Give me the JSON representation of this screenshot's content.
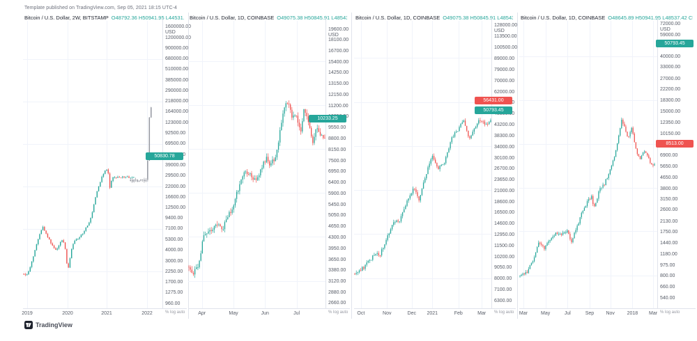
{
  "page": {
    "note": "Template published on TradingView.com, Sep 05, 2021 18:15 UTC-4",
    "logo_text": "TradingView",
    "axis_unit": "USD",
    "axis_footer": "% log auto"
  },
  "colors": {
    "up": "#26a69a",
    "down": "#ef5350",
    "ghost": "#9598a1",
    "grid": "#f0f3fa",
    "divider": "#e0e3eb",
    "axis_text": "#565b66",
    "title_text": "#1e222d",
    "ohlc_text": "#26a69a",
    "badge_up": "#26a69a",
    "badge_down": "#ef5350"
  },
  "chart_data": [
    {
      "type": "candlestick",
      "title": "Bitcoin / U.S. Dollar, 2W, BITSTAMP",
      "ohlc_line": "O48792.36  H50941.95  L44531.42  C50830.78 …",
      "scale": "log",
      "grid": true,
      "price_range": [
        853,
        1900000
      ],
      "axis_ticks": [
        "1600000.00",
        "1200000.00",
        "900000.00",
        "680000.00",
        "510000.00",
        "385000.00",
        "290000.00",
        "218000.00",
        "164000.00",
        "123000.00",
        "92500.00",
        "69500.00",
        "52000.00",
        "39000.00",
        "29500.00",
        "22000.00",
        "16600.00",
        "12500.00",
        "9400.00",
        "7100.00",
        "5300.00",
        "4000.00",
        "3000.00",
        "2250.00",
        "1700.00",
        "1275.00",
        "960.00"
      ],
      "time_labels": [
        {
          "label": "2019",
          "pos": 0.03
        },
        {
          "label": "2020",
          "pos": 0.32
        },
        {
          "label": "2021",
          "pos": 0.6
        },
        {
          "label": "2022",
          "pos": 0.89
        }
      ],
      "series": {
        "count": 70,
        "volatility": 0.05,
        "x_span": [
          0.0,
          0.8
        ],
        "path": [
          [
            0.0,
            3750
          ],
          [
            0.03,
            3650
          ],
          [
            0.07,
            5000
          ],
          [
            0.12,
            8500
          ],
          [
            0.17,
            13500
          ],
          [
            0.21,
            10500
          ],
          [
            0.25,
            8400
          ],
          [
            0.28,
            7200
          ],
          [
            0.31,
            7400
          ],
          [
            0.34,
            9500
          ],
          [
            0.37,
            8800
          ],
          [
            0.4,
            4000
          ],
          [
            0.43,
            7000
          ],
          [
            0.46,
            9200
          ],
          [
            0.5,
            9500
          ],
          [
            0.54,
            11500
          ],
          [
            0.58,
            13500
          ],
          [
            0.62,
            19000
          ],
          [
            0.65,
            29000
          ],
          [
            0.68,
            38000
          ],
          [
            0.71,
            52000
          ],
          [
            0.74,
            59000
          ],
          [
            0.755,
            63500
          ],
          [
            0.77,
            55000
          ],
          [
            0.78,
            40000
          ],
          [
            0.79,
            31500
          ],
          [
            0.795,
            42000
          ],
          [
            0.8,
            50500
          ]
        ]
      },
      "ghost_series": {
        "count": 13,
        "volatility": 0.08,
        "x_span": [
          0.765,
          0.925
        ],
        "path": [
          [
            0.765,
            46000
          ],
          [
            0.79,
            58000
          ],
          [
            0.81,
            54000
          ],
          [
            0.84,
            88000
          ],
          [
            0.86,
            80000
          ],
          [
            0.885,
            125000
          ],
          [
            0.905,
            160000
          ],
          [
            0.925,
            320000
          ]
        ]
      },
      "badges": [
        {
          "text": "50830.78",
          "price": 50830.78,
          "direction": "up"
        }
      ]
    },
    {
      "type": "candlestick",
      "title": "Bitcoin / U.S. Dollar, 1D, COINBASE",
      "ohlc_line": "O49075.38  H50845.91  L48543.42  C50793.45 …",
      "scale": "log",
      "grid": true,
      "price_range": [
        2570,
        20900
      ],
      "axis_ticks": [
        "19600.00",
        "18100.00",
        "16700.00",
        "15400.00",
        "14250.00",
        "13150.00",
        "12150.00",
        "11200.00",
        "10350.00",
        "9550.00",
        "8800.00",
        "8150.00",
        "7500.00",
        "6950.00",
        "6400.00",
        "5900.00",
        "5450.00",
        "5050.00",
        "4650.00",
        "4300.00",
        "3950.00",
        "3650.00",
        "3380.00",
        "3120.00",
        "2880.00",
        "2660.00"
      ],
      "time_labels": [
        {
          "label": "Apr",
          "pos": 0.1
        },
        {
          "label": "May",
          "pos": 0.33
        },
        {
          "label": "Jun",
          "pos": 0.56
        },
        {
          "label": "Jul",
          "pos": 0.79
        }
      ],
      "series": {
        "count": 92,
        "volatility": 0.04,
        "x_span": [
          0.0,
          1.0
        ],
        "path": [
          [
            0.0,
            4050
          ],
          [
            0.03,
            3900
          ],
          [
            0.07,
            4000
          ],
          [
            0.11,
            5150
          ],
          [
            0.16,
            5300
          ],
          [
            0.21,
            5500
          ],
          [
            0.25,
            5350
          ],
          [
            0.28,
            5700
          ],
          [
            0.33,
            6400
          ],
          [
            0.37,
            7300
          ],
          [
            0.41,
            8000
          ],
          [
            0.45,
            7950
          ],
          [
            0.49,
            7600
          ],
          [
            0.53,
            8200
          ],
          [
            0.57,
            9000
          ],
          [
            0.6,
            8500
          ],
          [
            0.64,
            9100
          ],
          [
            0.67,
            10800
          ],
          [
            0.7,
            12800
          ],
          [
            0.73,
            13600
          ],
          [
            0.76,
            11800
          ],
          [
            0.79,
            12500
          ],
          [
            0.82,
            10700
          ],
          [
            0.85,
            12900
          ],
          [
            0.88,
            11500
          ],
          [
            0.91,
            10100
          ],
          [
            0.94,
            11200
          ],
          [
            0.97,
            10600
          ],
          [
            1.0,
            10250
          ]
        ]
      },
      "badges": [
        {
          "text": "10233.25",
          "price": 10233.25,
          "direction": "up"
        }
      ]
    },
    {
      "type": "candlestick",
      "title": "Bitcoin / U.S. Dollar, 1D, COINBASE",
      "ohlc_line": "O49075.38  H50845.91  L48543.42  C50793.45 …",
      "scale": "log",
      "grid": true,
      "price_range": [
        5830,
        135500
      ],
      "axis_ticks": [
        "128000.00",
        "113500.00",
        "100500.00",
        "89000.00",
        "79000.00",
        "70000.00",
        "62000.00",
        "55000.00",
        "48800.00",
        "43200.00",
        "38300.00",
        "34000.00",
        "30100.00",
        "26700.00",
        "23650.00",
        "21000.00",
        "18600.00",
        "16500.00",
        "14600.00",
        "12950.00",
        "11500.00",
        "10200.00",
        "9050.00",
        "8000.00",
        "7100.00",
        "6300.00"
      ],
      "time_labels": [
        {
          "label": "Oct",
          "pos": 0.05
        },
        {
          "label": "Nov",
          "pos": 0.24
        },
        {
          "label": "Dec",
          "pos": 0.42
        },
        {
          "label": "2021",
          "pos": 0.57
        },
        {
          "label": "Feb",
          "pos": 0.76
        },
        {
          "label": "Mar",
          "pos": 0.93
        }
      ],
      "series": {
        "count": 92,
        "volatility": 0.04,
        "x_span": [
          0.0,
          1.0
        ],
        "path": [
          [
            0.0,
            10700
          ],
          [
            0.05,
            11200
          ],
          [
            0.1,
            12100
          ],
          [
            0.15,
            13300
          ],
          [
            0.18,
            13000
          ],
          [
            0.24,
            16000
          ],
          [
            0.28,
            18400
          ],
          [
            0.33,
            19300
          ],
          [
            0.38,
            23200
          ],
          [
            0.44,
            27500
          ],
          [
            0.47,
            24000
          ],
          [
            0.52,
            31000
          ],
          [
            0.57,
            39500
          ],
          [
            0.61,
            33500
          ],
          [
            0.66,
            36500
          ],
          [
            0.71,
            46500
          ],
          [
            0.76,
            52000
          ],
          [
            0.8,
            57000
          ],
          [
            0.84,
            47500
          ],
          [
            0.88,
            51500
          ],
          [
            0.92,
            57500
          ],
          [
            0.96,
            55000
          ],
          [
            1.0,
            56500
          ]
        ]
      },
      "badges": [
        {
          "text": "56431.00",
          "price": 56431.0,
          "direction": "down"
        },
        {
          "text": "50793.45",
          "price": 50793.45,
          "direction": "up"
        }
      ]
    },
    {
      "type": "candlestick",
      "title": "Bitcoin / U.S. Dollar, 1D, COINBASE",
      "ohlc_line": "O48645.89  H50941.95  L48537.42  C50793.45 …",
      "scale": "log",
      "grid": true,
      "price_range": [
        455,
        76200
      ],
      "axis_ticks": [
        "72000.00",
        "59000.00",
        "48500.00",
        "40000.00",
        "33000.00",
        "27000.00",
        "22200.00",
        "18300.00",
        "15000.00",
        "12350.00",
        "10150.00",
        "8350.00",
        "6900.00",
        "5650.00",
        "4650.00",
        "3800.00",
        "3150.00",
        "2600.00",
        "2130.00",
        "1750.00",
        "1440.00",
        "1180.00",
        "975.00",
        "800.00",
        "660.00",
        "540.00"
      ],
      "time_labels": [
        {
          "label": "Mar",
          "pos": 0.03
        },
        {
          "label": "May",
          "pos": 0.19
        },
        {
          "label": "Jul",
          "pos": 0.35
        },
        {
          "label": "Sep",
          "pos": 0.51
        },
        {
          "label": "Nov",
          "pos": 0.66
        },
        {
          "label": "2018",
          "pos": 0.82
        },
        {
          "label": "Mar",
          "pos": 0.97
        }
      ],
      "series": {
        "count": 95,
        "volatility": 0.055,
        "x_span": [
          0.0,
          0.985
        ],
        "path": [
          [
            0.0,
            1180
          ],
          [
            0.05,
            1250
          ],
          [
            0.1,
            1600
          ],
          [
            0.14,
            2150
          ],
          [
            0.18,
            1900
          ],
          [
            0.23,
            2300
          ],
          [
            0.27,
            2550
          ],
          [
            0.31,
            2450
          ],
          [
            0.35,
            2650
          ],
          [
            0.38,
            2100
          ],
          [
            0.42,
            2750
          ],
          [
            0.46,
            3600
          ],
          [
            0.5,
            4400
          ],
          [
            0.53,
            4850
          ],
          [
            0.55,
            3900
          ],
          [
            0.59,
            5400
          ],
          [
            0.63,
            6100
          ],
          [
            0.66,
            7300
          ],
          [
            0.7,
            9500
          ],
          [
            0.74,
            15500
          ],
          [
            0.755,
            19200
          ],
          [
            0.78,
            16500
          ],
          [
            0.8,
            13500
          ],
          [
            0.83,
            16800
          ],
          [
            0.86,
            11500
          ],
          [
            0.89,
            9200
          ],
          [
            0.92,
            11200
          ],
          [
            0.95,
            9800
          ],
          [
            0.98,
            8500
          ]
        ]
      },
      "badges": [
        {
          "text": "50793.45",
          "price": 50793.45,
          "direction": "up"
        },
        {
          "text": "8513.00",
          "price": 8513.0,
          "direction": "down"
        }
      ]
    }
  ]
}
